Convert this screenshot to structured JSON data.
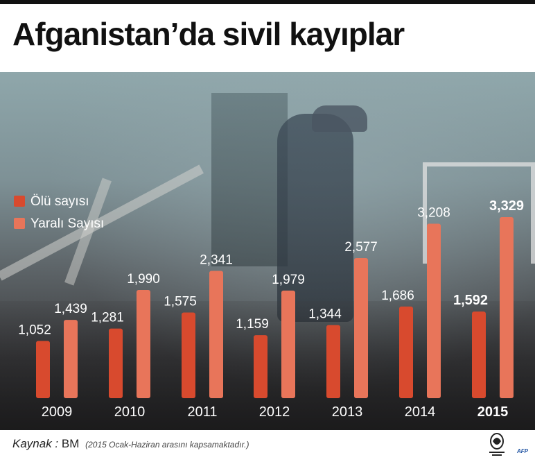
{
  "header": {
    "title": "Afganistan’da sivil kayıplar"
  },
  "colors": {
    "dead": "#d84a2e",
    "injured": "#e8755a",
    "text": "#ffffff"
  },
  "chart_data": {
    "type": "bar",
    "categories": [
      "2009",
      "2010",
      "2011",
      "2012",
      "2013",
      "2014",
      "2015"
    ],
    "series": [
      {
        "name": "Ölü sayısı",
        "values": [
          1052,
          1281,
          1575,
          1159,
          1344,
          1686,
          1592
        ]
      },
      {
        "name": "Yaralı Sayısı",
        "values": [
          1439,
          1990,
          2341,
          1979,
          2577,
          3208,
          3329
        ]
      }
    ],
    "value_labels": [
      [
        "1,052",
        "1,281",
        "1,575",
        "1,159",
        "1,344",
        "1,686",
        "1,592"
      ],
      [
        "1,439",
        "1,990",
        "2,341",
        "1,979",
        "2,577",
        "3,208",
        "3,329"
      ]
    ],
    "highlight_category": "2015",
    "legend_position": "left",
    "ylim": [
      0,
      3500
    ],
    "title": "Afganistan’da sivil kayıplar",
    "xlabel": "",
    "ylabel": ""
  },
  "footer": {
    "source_label": "Kaynak :",
    "source_value": "BM",
    "note": "(2015 Ocak-Haziran arasını kapsamaktadır.)",
    "logo_text": "ALJAZEERA TÜRK",
    "agency": "AFP"
  }
}
